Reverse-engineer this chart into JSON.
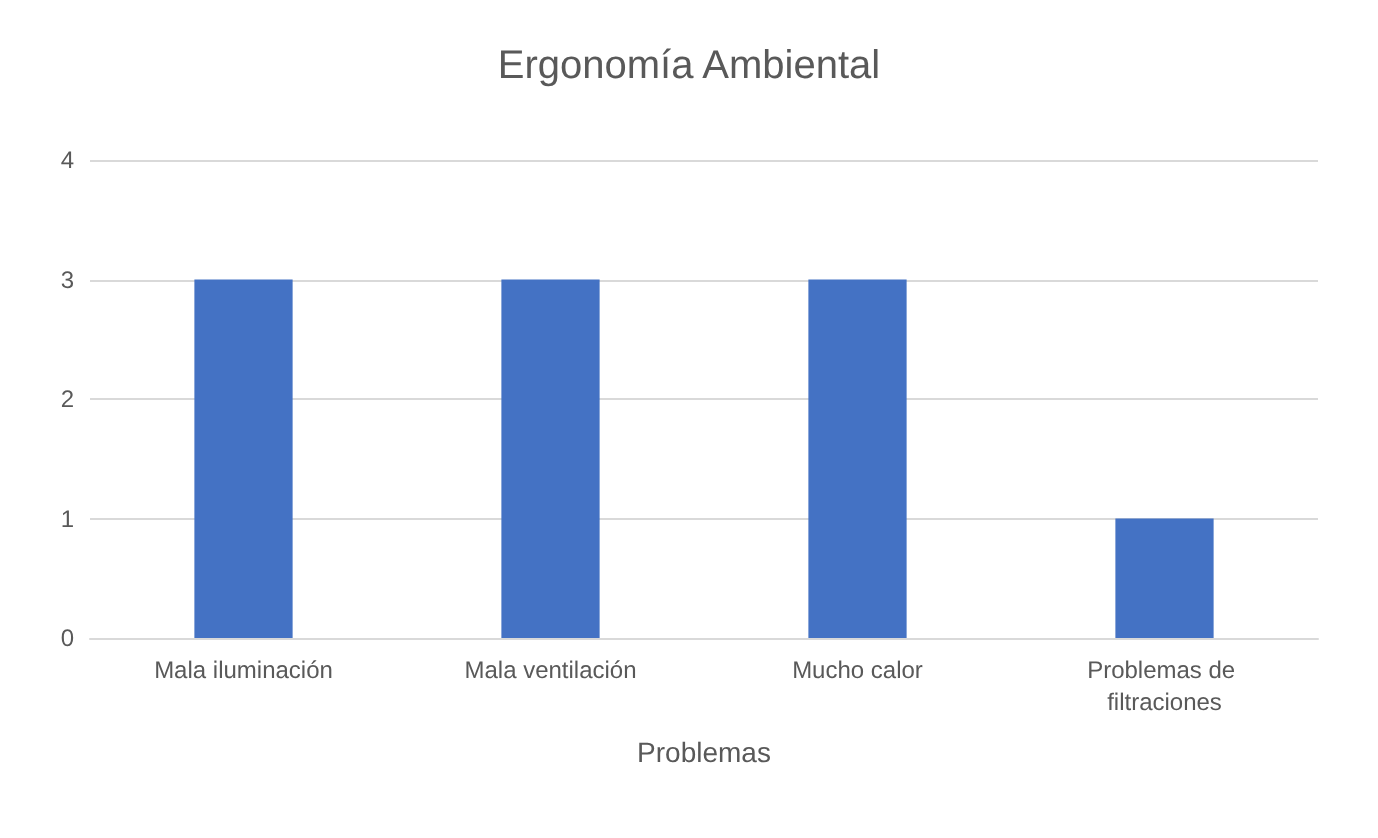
{
  "chart_data": {
    "type": "bar",
    "title": "Ergonomía Ambiental",
    "xlabel": "Problemas",
    "categories": [
      "Mala iluminación",
      "Mala ventilación",
      "Mucho calor",
      "Problemas de filtraciones"
    ],
    "values": [
      3,
      3,
      3,
      1
    ],
    "color": "#4472c4",
    "ylim": [
      0,
      4
    ],
    "yticks": [
      0,
      1,
      2,
      3,
      4
    ],
    "grid": "y"
  }
}
